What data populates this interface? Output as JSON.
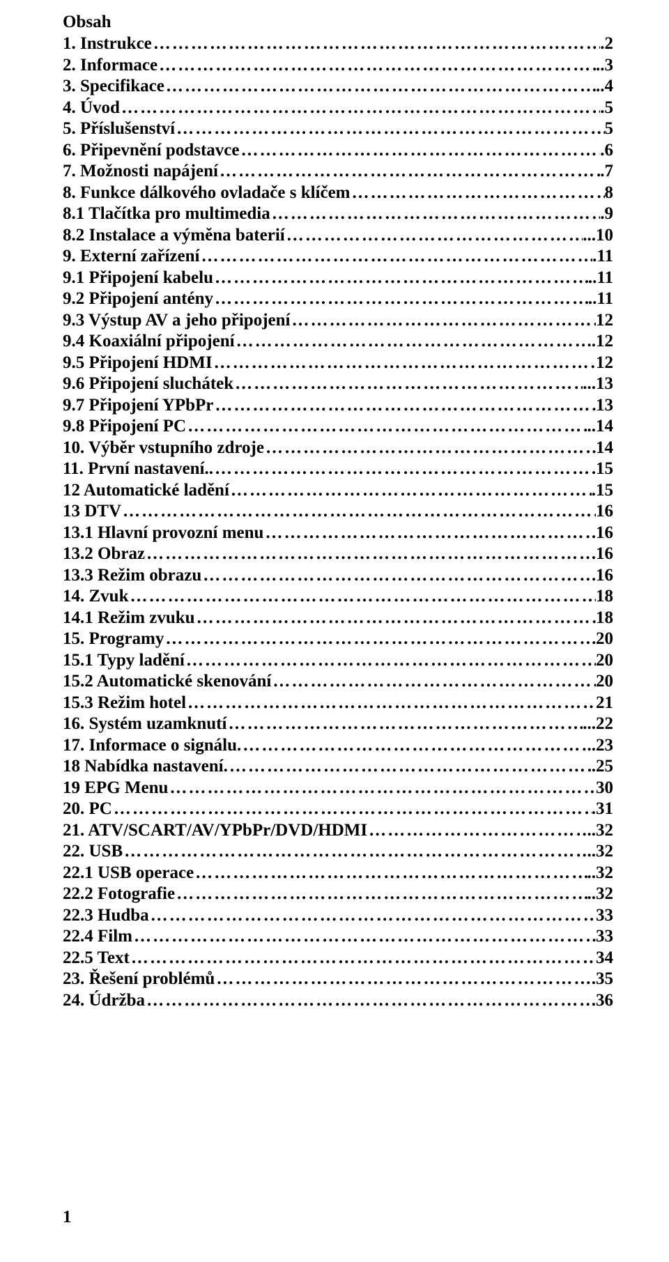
{
  "title": "Obsah",
  "page_number": "1",
  "text_color": "#000000",
  "background_color": "#ffffff",
  "font_family": "Times New Roman",
  "font_size_pt": 19,
  "font_weight": "bold",
  "entries": [
    {
      "label": "1. Instrukce",
      "page": ".2"
    },
    {
      "label": "2. Informace",
      "page": "..3"
    },
    {
      "label": "3. Specifikace",
      "page": "..4"
    },
    {
      "label": "4. Úvod",
      "page": ".5"
    },
    {
      "label": "5. Příslušenství",
      "page": "5"
    },
    {
      "label": "6. Připevnění podstavce",
      "page": ".6"
    },
    {
      "label": "7. Možnosti napájení",
      "page": ".7"
    },
    {
      "label": "8. Funkce dálkového ovladače s klíčem",
      "page": "8"
    },
    {
      "label": "8.1 Tlačítka pro multimedia",
      "page": ".9"
    },
    {
      "label": "8.2 Instalace a výměna baterií",
      "page": "...10"
    },
    {
      "label": "9. Externí zařízení",
      "page": ".11"
    },
    {
      "label": "9.1 Připojení kabelu",
      "page": "..11"
    },
    {
      "label": "9.2 Připojení antény",
      "page": "..11"
    },
    {
      "label": "9.3 Výstup AV a jeho připojení",
      "page": "12"
    },
    {
      "label": "9.4 Koaxiální připojení",
      "page": "..12"
    },
    {
      "label": "9.5 Připojení HDMI",
      "page": "12"
    },
    {
      "label": "9.6 Připojení sluchátek",
      "page": "...13"
    },
    {
      "label": "9.7 Připojení YPbPr",
      "page": "13"
    },
    {
      "label": "9.8 Připojení PC",
      "page": "..14"
    },
    {
      "label": "10. Výběr vstupního zdroje",
      "page": "14"
    },
    {
      "label": "11. První nastavení..",
      "page": "15"
    },
    {
      "label": "12 Automatické ladění",
      "page": ".15"
    },
    {
      "label": "13  DTV",
      "page": "16"
    },
    {
      "label": "13.1 Hlavní provozní menu",
      "page": "16"
    },
    {
      "label": "13.2 Obraz",
      "page": "16"
    },
    {
      "label": "13.3 Režim obrazu",
      "page": "16"
    },
    {
      "label": "14. Zvuk",
      "page": "18"
    },
    {
      "label": "14.1 Režim zvuku",
      "page": "18"
    },
    {
      "label": "15. Programy",
      "page": "20"
    },
    {
      "label": "15.1 Typy ladění",
      "page": "20"
    },
    {
      "label": "15.2 Automatické skenování",
      "page": "20"
    },
    {
      "label": "15.3 Režim hotel",
      "page": "21"
    },
    {
      "label": "16. Systém uzamknutí",
      "page": "...22"
    },
    {
      "label": "17. Informace o signálu.",
      "page": "..23"
    },
    {
      "label": "18 Nabídka nastavení.",
      "page": ".25"
    },
    {
      "label": "19 EPG Menu",
      "page": "30"
    },
    {
      "label": "20. PC",
      "page": ".31"
    },
    {
      "label": "21. ATV/SCART/AV/YPbPr/DVD/HDMI",
      "page": "..32"
    },
    {
      "label": "22. USB",
      "page": "..32"
    },
    {
      "label": "22.1 USB operace",
      "page": "..32"
    },
    {
      "label": "22.2 Fotografie",
      "page": "..32"
    },
    {
      "label": "22.3 Hudba",
      "page": "33"
    },
    {
      "label": "22.4 Film",
      "page": "33"
    },
    {
      "label": "22.5 Text",
      "page": "34"
    },
    {
      "label": "23. Řešení problémů",
      "page": ".35"
    },
    {
      "label": "24. Údržba",
      "page": ".36"
    }
  ]
}
